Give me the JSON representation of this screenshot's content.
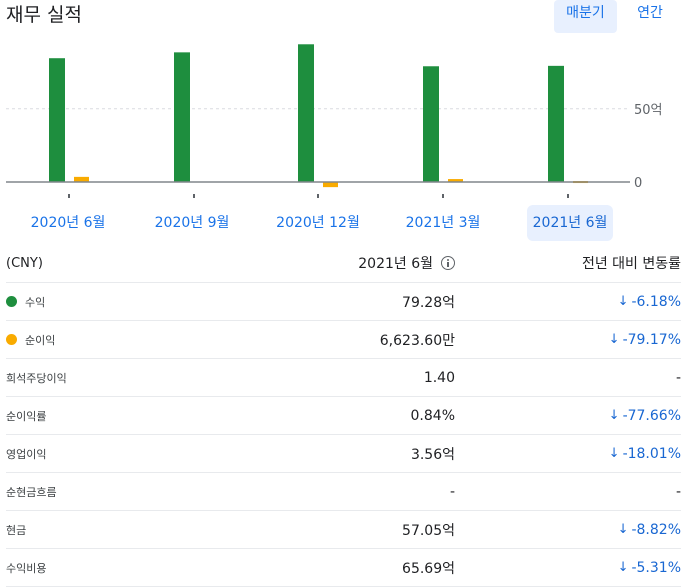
{
  "title": "재무 실적",
  "toggles": {
    "quarterly": "매분기",
    "annual": "연간"
  },
  "colors": {
    "revenue": "#1e8e3e",
    "net_income": "#f9ab00",
    "accent": "#1a73e8",
    "negative_change": "#1967d2"
  },
  "chart_data": {
    "type": "bar",
    "categories": [
      "2020년 6월",
      "2020년 9월",
      "2020년 12월",
      "2021년 3월",
      "2021년 6월"
    ],
    "series": [
      {
        "name": "수익",
        "values": [
          84.5,
          88.5,
          94.0,
          79.0,
          79.28
        ]
      },
      {
        "name": "순이익",
        "values": [
          3.5,
          0.0,
          -3.5,
          2.0,
          0.66
        ]
      }
    ],
    "y_ticks": [
      {
        "value": 50,
        "label": "50억"
      },
      {
        "value": 0,
        "label": "0"
      }
    ],
    "ylim": [
      -10,
      100
    ],
    "grid": true
  },
  "periods": {
    "items": [
      "2020년 6월",
      "2020년 9월",
      "2020년 12월",
      "2021년 3월",
      "2021년 6월"
    ],
    "selected_index": 4
  },
  "table": {
    "header": {
      "label": "(CNY)",
      "value": "2021년 6월",
      "change": "전년 대비 변동률"
    },
    "rows": [
      {
        "label": "수익",
        "value": "79.28억",
        "change": "-6.18%",
        "arrow": "↓",
        "dot": "revenue"
      },
      {
        "label": "순이익",
        "value": "6,623.60만",
        "change": "-79.17%",
        "arrow": "↓",
        "dot": "net_income"
      },
      {
        "label": "희석주당이익",
        "value": "1.40",
        "change": "-",
        "arrow": ""
      },
      {
        "label": "순이익률",
        "value": "0.84%",
        "change": "-77.66%",
        "arrow": "↓"
      },
      {
        "label": "영업이익",
        "value": "3.56억",
        "change": "-18.01%",
        "arrow": "↓"
      },
      {
        "label": "순현금흐름",
        "value": "-",
        "change": "-",
        "arrow": ""
      },
      {
        "label": "현금",
        "value": "57.05억",
        "change": "-8.82%",
        "arrow": "↓"
      },
      {
        "label": "수익비용",
        "value": "65.69억",
        "change": "-5.31%",
        "arrow": "↓"
      }
    ]
  }
}
